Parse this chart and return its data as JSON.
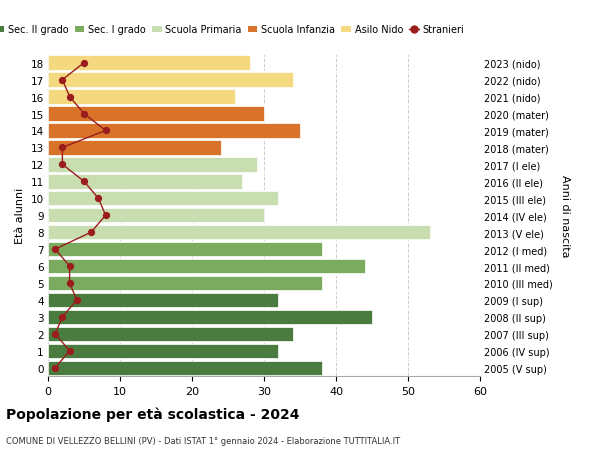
{
  "ages": [
    18,
    17,
    16,
    15,
    14,
    13,
    12,
    11,
    10,
    9,
    8,
    7,
    6,
    5,
    4,
    3,
    2,
    1,
    0
  ],
  "years_labels": [
    "2005 (V sup)",
    "2006 (IV sup)",
    "2007 (III sup)",
    "2008 (II sup)",
    "2009 (I sup)",
    "2010 (III med)",
    "2011 (II med)",
    "2012 (I med)",
    "2013 (V ele)",
    "2014 (IV ele)",
    "2015 (III ele)",
    "2016 (II ele)",
    "2017 (I ele)",
    "2018 (mater)",
    "2019 (mater)",
    "2020 (mater)",
    "2021 (nido)",
    "2022 (nido)",
    "2023 (nido)"
  ],
  "bar_values": [
    38,
    32,
    34,
    45,
    32,
    38,
    44,
    38,
    53,
    30,
    32,
    27,
    29,
    24,
    35,
    30,
    26,
    34,
    28
  ],
  "bar_colors": [
    "#4a7c3f",
    "#4a7c3f",
    "#4a7c3f",
    "#4a7c3f",
    "#4a7c3f",
    "#7aab5e",
    "#7aab5e",
    "#7aab5e",
    "#c8ddb0",
    "#c8ddb0",
    "#c8ddb0",
    "#c8ddb0",
    "#c8ddb0",
    "#d9732a",
    "#d9732a",
    "#d9732a",
    "#f5d980",
    "#f5d980",
    "#f5d980"
  ],
  "stranieri_values": [
    1,
    3,
    1,
    2,
    4,
    3,
    3,
    1,
    6,
    8,
    7,
    5,
    2,
    2,
    8,
    5,
    3,
    2,
    5
  ],
  "stranieri_color": "#9b1c1c",
  "title": "Popolazione per età scolastica - 2024",
  "subtitle": "COMUNE DI VELLEZZO BELLINI (PV) - Dati ISTAT 1° gennaio 2024 - Elaborazione TUTTITALIA.IT",
  "ylabel_left": "Età alunni",
  "ylabel_right": "Anni di nascita",
  "xlim": [
    0,
    60
  ],
  "xticks": [
    0,
    10,
    20,
    30,
    40,
    50,
    60
  ],
  "legend_items": [
    {
      "label": "Sec. II grado",
      "color": "#4a7c3f"
    },
    {
      "label": "Sec. I grado",
      "color": "#7aab5e"
    },
    {
      "label": "Scuola Primaria",
      "color": "#c8ddb0"
    },
    {
      "label": "Scuola Infanzia",
      "color": "#d9732a"
    },
    {
      "label": "Asilo Nido",
      "color": "#f5d980"
    },
    {
      "label": "Stranieri",
      "color": "#9b1c1c"
    }
  ],
  "bg_color": "#ffffff",
  "grid_color": "#cccccc"
}
